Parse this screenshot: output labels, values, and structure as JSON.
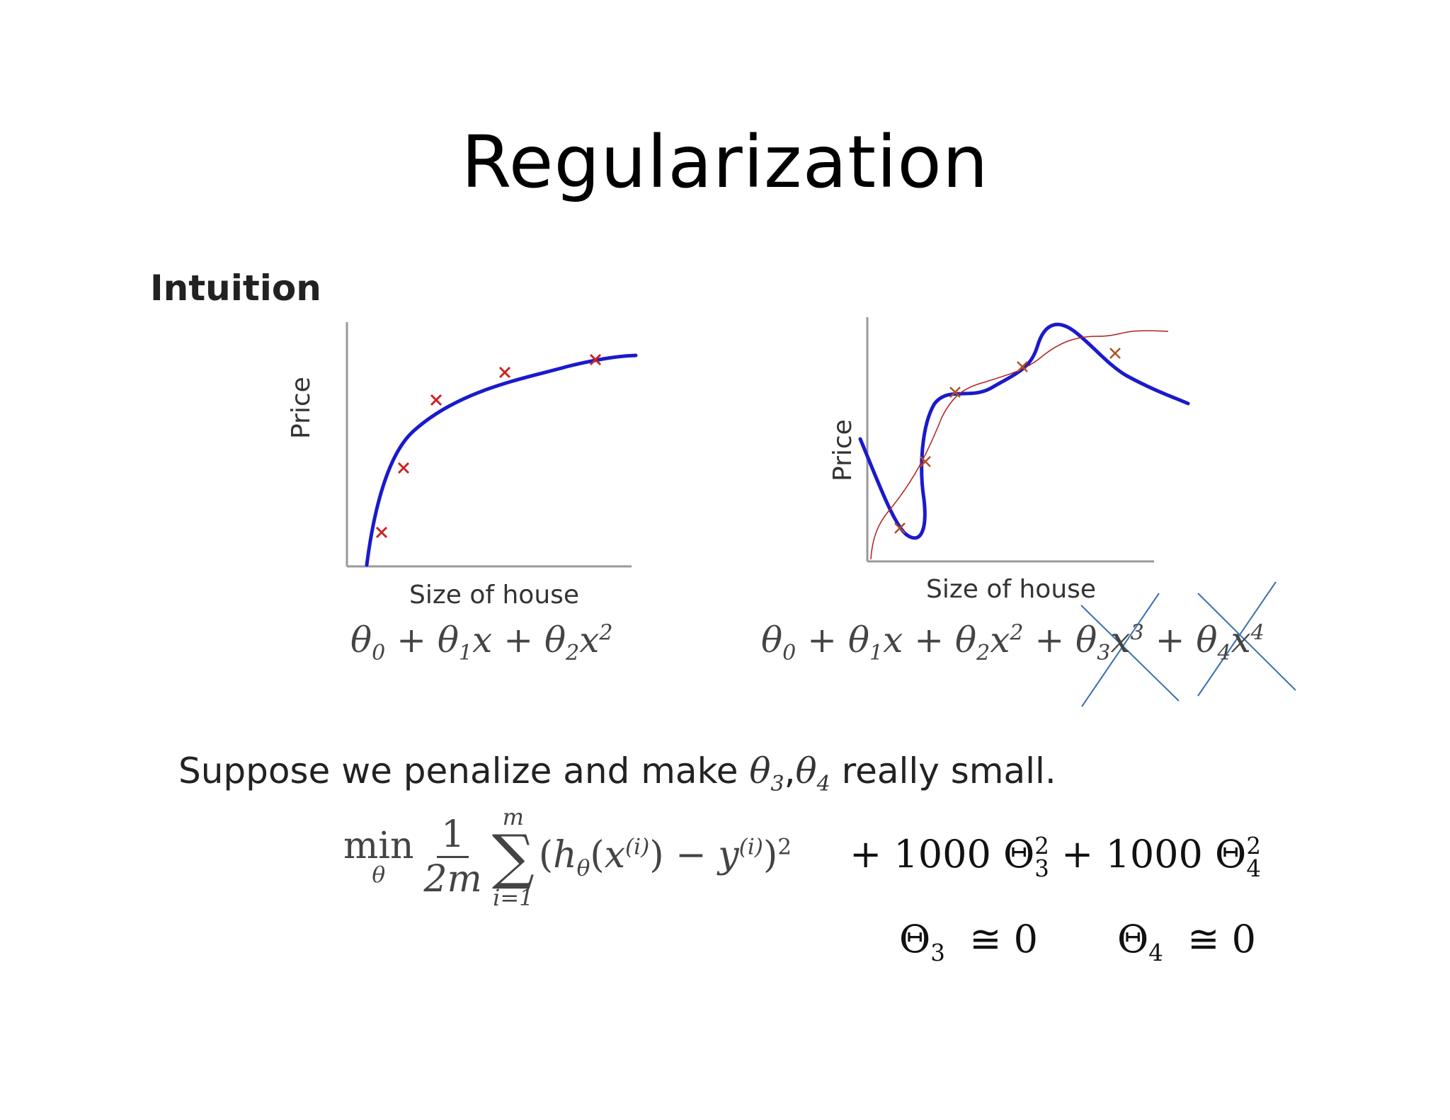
{
  "slide": {
    "title": "Regularization",
    "heading": "Intuition"
  },
  "plot_left": {
    "ylabel": "Price",
    "xlabel": "Size of house",
    "formula": {
      "t0": "θ",
      "s0": "0",
      "op1": " + ",
      "t1": "θ",
      "s1": "1",
      "v1": "x",
      "op2": " + ",
      "t2": "θ",
      "s2": "2",
      "v2": "x",
      "p2": "2"
    }
  },
  "plot_right": {
    "ylabel": "Price",
    "xlabel": "Size of house",
    "formula": {
      "t0": "θ",
      "s0": "0",
      "op1": " + ",
      "t1": "θ",
      "s1": "1",
      "v1": "x",
      "op2": " + ",
      "t2": "θ",
      "s2": "2",
      "v2": "x",
      "p2": "2",
      "op3": " + ",
      "t3": "θ",
      "s3": "3",
      "v3": "x",
      "p3": "3",
      "op4": " + ",
      "t4": "θ",
      "s4": "4",
      "v4": "x",
      "p4": "4"
    }
  },
  "sentence": {
    "before": "Suppose we penalize and make ",
    "theta": "θ",
    "sub3": "3",
    "comma": ",",
    "sub4": "4",
    "after": " really small."
  },
  "objective": {
    "min": "min",
    "min_sub": "θ",
    "numerator": "1",
    "denominator": "2m",
    "sum_symbol": "∑",
    "sum_top": "m",
    "sum_bottom": "i=1",
    "h": "h",
    "h_sub": "θ",
    "paren_open": "(",
    "x": "x",
    "idx": "(i)",
    "paren_close": ")",
    "minus": " − ",
    "y": "y",
    "square": "2"
  },
  "penalty": {
    "plus1": "+ 1000 Θ",
    "sub3": "3",
    "sup3": "2",
    "plus2": " + 1000 Θ",
    "sub4": "4",
    "sup4": "2"
  },
  "approx": {
    "theta3": "Θ",
    "sub3": "3",
    "eq3": "  ≅ 0",
    "theta4": "Θ",
    "sub4": "4",
    "eq4": "  ≅ 0"
  },
  "colors": {
    "curve": "#1a1acc",
    "marker": "#cc2222",
    "thin_curve": "#b02020",
    "cross_out": "#3a6fb0",
    "axis": "#999999"
  }
}
